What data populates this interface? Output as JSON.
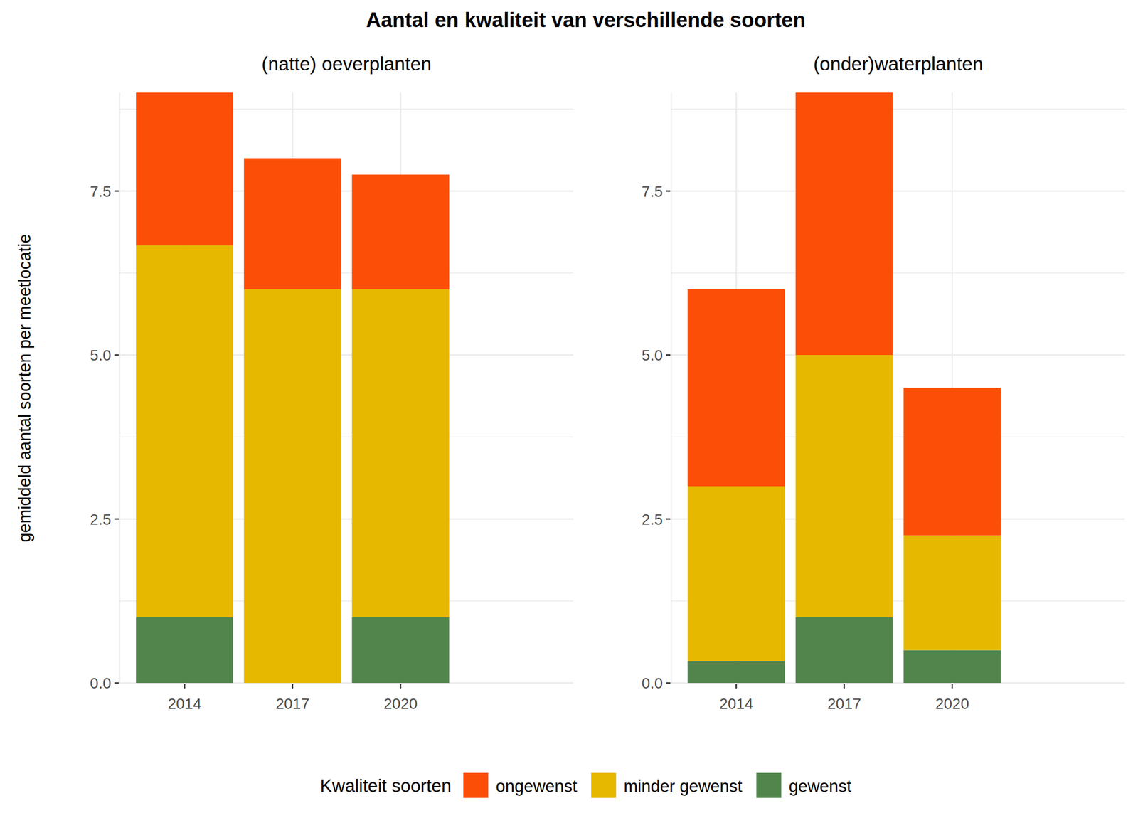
{
  "figure": {
    "title": "Aantal en kwaliteit van verschillende soorten",
    "y_label": "gemiddeld aantal soorten per meetlocatie",
    "legend_title": "Kwaliteit soorten"
  },
  "chart_data": [
    {
      "type": "bar",
      "stacked": true,
      "grid": true,
      "legend": "bottom",
      "title": "(natte) oeverplanten",
      "categories": [
        "2014",
        "2017",
        "2020"
      ],
      "series": [
        {
          "name": "ongewenst",
          "color": "#FC4E07",
          "values": [
            2.33,
            2,
            1.75
          ]
        },
        {
          "name": "minder gewenst",
          "color": "#E7B800",
          "values": [
            5.67,
            6,
            5
          ]
        },
        {
          "name": "gewenst",
          "color": "#52854C",
          "values": [
            1,
            0,
            1
          ]
        }
      ],
      "ylim": [
        0,
        9
      ],
      "yticks": [
        {
          "value": 0,
          "label": "0.0"
        },
        {
          "value": 2.5,
          "label": "2.5"
        },
        {
          "value": 5,
          "label": "5.0"
        },
        {
          "value": 7.5,
          "label": "7.5"
        }
      ]
    },
    {
      "type": "bar",
      "stacked": true,
      "grid": true,
      "legend": "bottom",
      "title": "(onder)waterplanten",
      "categories": [
        "2014",
        "2017",
        "2020"
      ],
      "series": [
        {
          "name": "ongewenst",
          "color": "#FC4E07",
          "values": [
            3,
            4,
            2.25
          ]
        },
        {
          "name": "minder gewenst",
          "color": "#E7B800",
          "values": [
            2.67,
            4,
            1.75
          ]
        },
        {
          "name": "gewenst",
          "color": "#52854C",
          "values": [
            0.33,
            1,
            0.5
          ]
        }
      ],
      "ylim": [
        0,
        9
      ],
      "yticks": [
        {
          "value": 0,
          "label": "0.0"
        },
        {
          "value": 2.5,
          "label": "2.5"
        },
        {
          "value": 5,
          "label": "5.0"
        },
        {
          "value": 7.5,
          "label": "7.5"
        }
      ]
    }
  ]
}
